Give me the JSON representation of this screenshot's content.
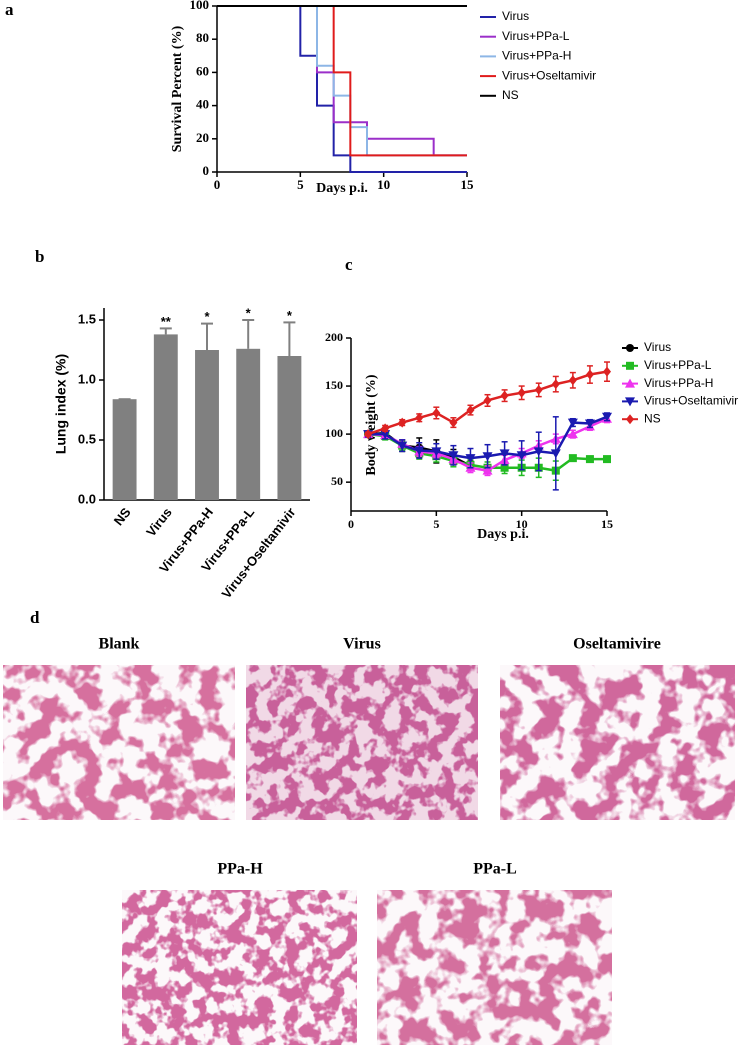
{
  "chart_data": [
    {
      "type": "step",
      "panel": "a",
      "ylabel": "Survival Percent (%)",
      "xlabel": "Days p.i.",
      "xlim": [
        0,
        15
      ],
      "ylim": [
        0,
        100
      ],
      "xticks": [
        0,
        5,
        10,
        15
      ],
      "yticks": [
        0,
        20,
        40,
        60,
        80,
        100
      ],
      "series": [
        {
          "name": "Virus",
          "color": "#2222a8",
          "x": [
            0,
            5,
            6,
            7,
            8,
            15
          ],
          "values": [
            100,
            70,
            40,
            10,
            0,
            0
          ]
        },
        {
          "name": "Virus+PPa-L",
          "color": "#9b2fc9",
          "x": [
            0,
            6,
            7,
            9,
            13,
            15
          ],
          "values": [
            100,
            60,
            30,
            20,
            10,
            10
          ]
        },
        {
          "name": "Virus+PPa-H",
          "color": "#8db6e6",
          "x": [
            0,
            6,
            7,
            8,
            9,
            15
          ],
          "values": [
            100,
            64,
            46,
            27,
            10,
            10
          ]
        },
        {
          "name": "Virus+Oseltamivir",
          "color": "#e01b1b",
          "x": [
            0,
            7,
            8,
            15
          ],
          "values": [
            100,
            60,
            10,
            10
          ]
        },
        {
          "name": "NS",
          "color": "#000000",
          "x": [
            0,
            15
          ],
          "values": [
            100,
            100
          ]
        }
      ]
    },
    {
      "type": "bar",
      "panel": "b",
      "ylabel": "Lung index (%)",
      "color": "#808080",
      "categories": [
        "NS",
        "Virus",
        "Virus+PPa-H",
        "Virus+PPa-L",
        "Virus+Oseltamivir"
      ],
      "values": [
        0.84,
        1.38,
        1.25,
        1.26,
        1.2
      ],
      "errors": [
        0,
        0.05,
        0.22,
        0.24,
        0.28
      ],
      "annotations": [
        null,
        "**",
        "*",
        "*",
        "*"
      ],
      "ylim": [
        0,
        1.6
      ],
      "yticks": [
        {
          "value": 0,
          "label": "0.0"
        },
        {
          "value": 0.5,
          "label": "0.5"
        },
        {
          "value": 1,
          "label": "1.0"
        },
        {
          "value": 1.5,
          "label": "1.5"
        }
      ]
    },
    {
      "type": "line",
      "panel": "c",
      "ylabel": "Body weight (%)",
      "xlabel": "Days p.i.",
      "x": [
        1,
        2,
        3,
        4,
        5,
        6,
        7,
        8,
        9,
        10,
        11,
        12,
        13,
        14,
        15
      ],
      "xlim": [
        0,
        15
      ],
      "ylim": [
        20,
        200
      ],
      "xticks": [
        0,
        5,
        10,
        15
      ],
      "yticks": [
        50,
        100,
        150,
        200
      ],
      "series": [
        {
          "name": "Virus",
          "color": "#000000",
          "marker": "circle",
          "values": [
            100,
            101,
            88,
            86,
            82,
            76,
            67,
            null,
            null,
            null,
            null,
            null,
            null,
            null,
            null
          ],
          "errors": [
            3,
            5,
            6,
            10,
            12,
            8,
            5,
            null,
            null,
            null,
            null,
            null,
            null,
            null,
            null
          ]
        },
        {
          "name": "Virus+PPa-L",
          "color": "#22bb22",
          "marker": "square",
          "values": [
            100,
            98,
            88,
            80,
            77,
            72,
            68,
            65,
            65,
            65,
            65,
            62,
            75,
            74,
            74
          ],
          "errors": [
            2,
            4,
            5,
            6,
            6,
            6,
            6,
            6,
            6,
            8,
            10,
            10,
            3,
            3,
            3
          ]
        },
        {
          "name": "Virus+PPa-H",
          "color": "#ee33ee",
          "marker": "triangle-up",
          "values": [
            100,
            99,
            90,
            82,
            80,
            74,
            65,
            62,
            73,
            80,
            88,
            95,
            100,
            108,
            116
          ],
          "errors": [
            2,
            3,
            4,
            5,
            5,
            5,
            5,
            5,
            5,
            5,
            5,
            5,
            4,
            4,
            4
          ]
        },
        {
          "name": "Virus+Oseltamivir",
          "color": "#1a1ab0",
          "marker": "triangle-down",
          "values": [
            100,
            100,
            88,
            83,
            82,
            78,
            75,
            77,
            80,
            78,
            82,
            80,
            112,
            111,
            118
          ],
          "errors": [
            3,
            5,
            6,
            8,
            8,
            10,
            10,
            12,
            12,
            15,
            20,
            38,
            4,
            4,
            4
          ]
        },
        {
          "name": "NS",
          "color": "#dd2222",
          "marker": "diamond",
          "values": [
            100,
            106,
            112,
            117,
            122,
            112,
            125,
            135,
            140,
            143,
            146,
            152,
            156,
            162,
            165
          ],
          "errors": [
            2,
            3,
            3,
            4,
            6,
            5,
            5,
            6,
            6,
            7,
            7,
            8,
            8,
            9,
            10
          ]
        }
      ]
    }
  ],
  "histology": {
    "label": "d",
    "images": [
      {
        "title": "Blank"
      },
      {
        "title": "Virus"
      },
      {
        "title": "Oseltamivire"
      },
      {
        "title": "PPa-H"
      },
      {
        "title": "PPa-L"
      }
    ]
  }
}
